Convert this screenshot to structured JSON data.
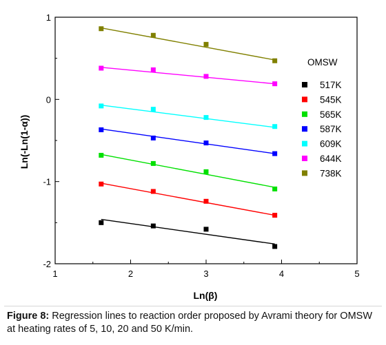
{
  "chart_data": {
    "type": "scatter",
    "xlabel": "Ln(β)",
    "ylabel": "Ln(-Ln(1-α))",
    "xlim": [
      1,
      5
    ],
    "ylim": [
      -2,
      1
    ],
    "xticks": [
      "1",
      "2",
      "3",
      "4",
      "5"
    ],
    "yticks": [
      "-2",
      "-1",
      "0",
      "1"
    ],
    "legend_title": "OMSW",
    "legend_position": "right",
    "x": [
      1.61,
      2.3,
      3.0,
      3.91
    ],
    "series": [
      {
        "name": "517K",
        "color": "#000000",
        "values": [
          -1.5,
          -1.54,
          -1.58,
          -1.79
        ],
        "fit": [
          -1.46,
          -1.76
        ]
      },
      {
        "name": "545K",
        "color": "#ff0000",
        "values": [
          -1.03,
          -1.12,
          -1.24,
          -1.41
        ],
        "fit": [
          -1.02,
          -1.41
        ]
      },
      {
        "name": "565K",
        "color": "#00e000",
        "values": [
          -0.68,
          -0.78,
          -0.88,
          -1.09
        ],
        "fit": [
          -0.67,
          -1.07
        ]
      },
      {
        "name": "587K",
        "color": "#0000ff",
        "values": [
          -0.37,
          -0.47,
          -0.53,
          -0.66
        ],
        "fit": [
          -0.36,
          -0.66
        ]
      },
      {
        "name": "609K",
        "color": "#00ffff",
        "values": [
          -0.08,
          -0.12,
          -0.22,
          -0.33
        ],
        "fit": [
          -0.07,
          -0.34
        ]
      },
      {
        "name": "644K",
        "color": "#ff00ff",
        "values": [
          0.38,
          0.36,
          0.28,
          0.19
        ],
        "fit": [
          0.39,
          0.19
        ]
      },
      {
        "name": "738K",
        "color": "#808000",
        "values": [
          0.86,
          0.78,
          0.67,
          0.47
        ],
        "fit": [
          0.87,
          0.48
        ]
      }
    ]
  },
  "caption": {
    "label": "Figure 8:",
    "text": " Regression lines to reaction order proposed by Avrami theory for OMSW at heating rates of 5, 10, 20 and 50 K/min."
  }
}
